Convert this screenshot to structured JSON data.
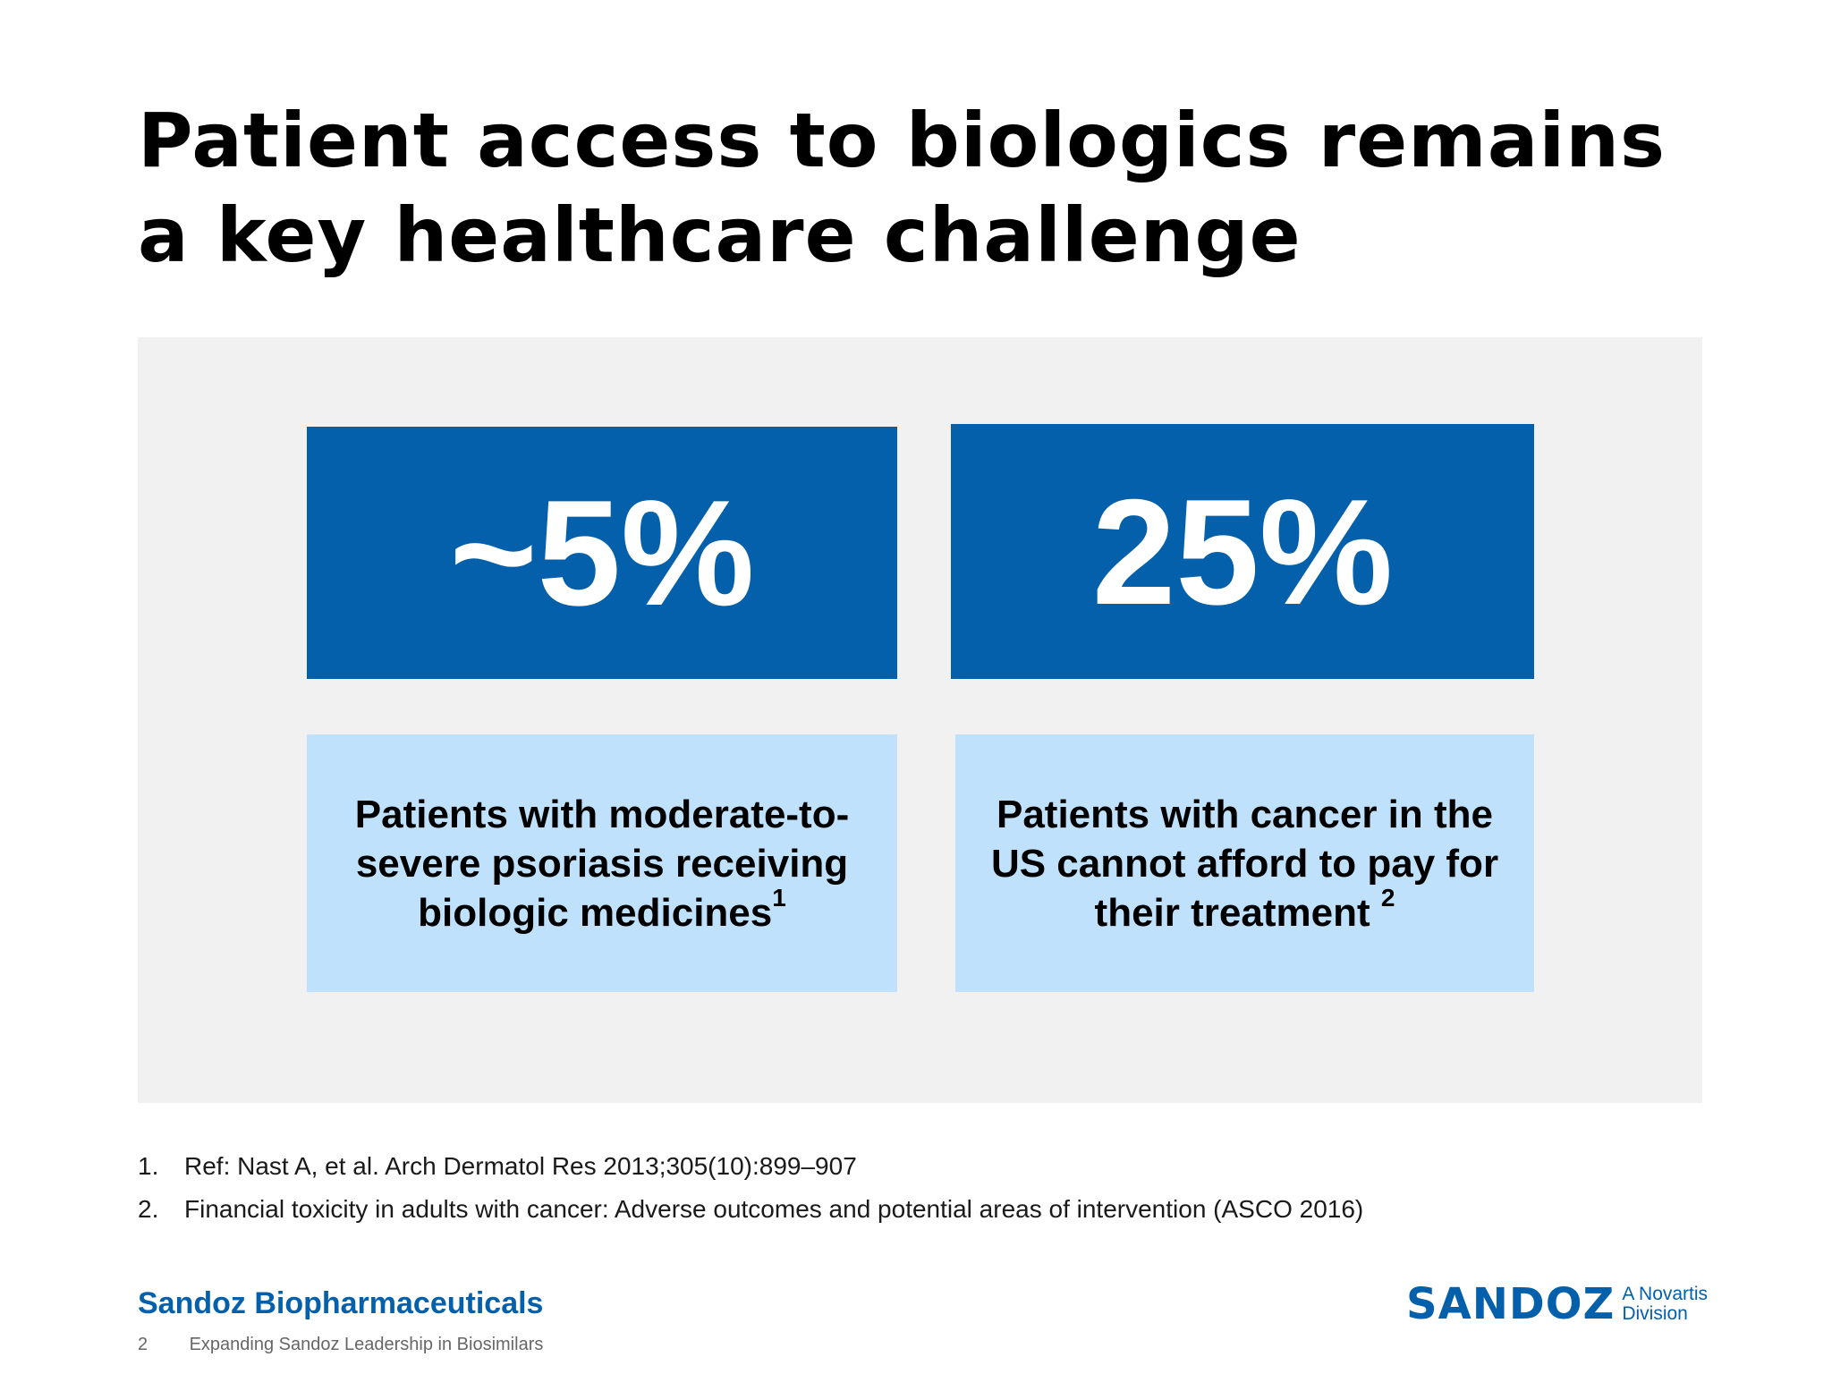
{
  "slide": {
    "title_line1": "Patient access to biologics remains",
    "title_line2": "a key healthcare challenge"
  },
  "stats": [
    {
      "value": "~5%",
      "description": "Patients with moderate-to-severe psoriasis receiving biologic medicines",
      "ref": "1"
    },
    {
      "value": "25%",
      "description": "Patients with cancer in the US cannot afford to pay for their treatment",
      "ref": "2"
    }
  ],
  "references": [
    {
      "num": "1.",
      "text": "Ref: Nast A, et al. Arch Dermatol Res 2013;305(10):899–907"
    },
    {
      "num": "2.",
      "text": "Financial toxicity in adults with cancer: Adverse outcomes and potential areas of intervention (ASCO 2016)"
    }
  ],
  "footer": {
    "brand": "Sandoz Biopharmaceuticals",
    "page_number": "2",
    "deck_title": "Expanding Sandoz Leadership in Biosimilars"
  },
  "logo": {
    "wordmark": "SANDOZ",
    "sub_line1": "A Novartis",
    "sub_line2": "Division"
  },
  "colors": {
    "primary_blue": "#0460aa",
    "light_blue": "#bfe1fb",
    "panel_gray": "#f1f1f1"
  }
}
